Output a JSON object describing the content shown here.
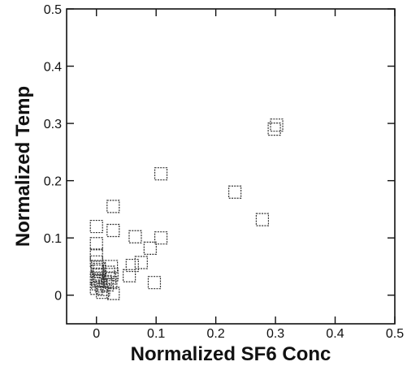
{
  "chart_data": {
    "type": "scatter",
    "title": "",
    "xlabel": "Normalized SF6 Conc",
    "ylabel": "Normalized Temp",
    "xlim": [
      -0.05,
      0.5
    ],
    "ylim": [
      -0.05,
      0.5
    ],
    "xticks": [
      0,
      0.1,
      0.2,
      0.3,
      0.4,
      0.5
    ],
    "xtick_labels": [
      "0",
      "0.1",
      "0.2",
      "0.3",
      "0.4",
      "0.5"
    ],
    "yticks": [
      0,
      0.1,
      0.2,
      0.3,
      0.4,
      0.5
    ],
    "ytick_labels": [
      "0",
      "0.1",
      "0.2",
      "0.3",
      "0.4",
      "0.5"
    ],
    "grid": false,
    "legend": "none",
    "marker": "open-square",
    "marker_color": "#333333",
    "series": [
      {
        "points": [
          [
            0.0,
            0.12
          ],
          [
            0.028,
            0.155
          ],
          [
            0.028,
            0.113
          ],
          [
            0.0,
            0.09
          ],
          [
            0.0,
            0.07
          ],
          [
            0.0,
            0.058
          ],
          [
            0.002,
            0.05
          ],
          [
            0.001,
            0.042
          ],
          [
            0.004,
            0.035
          ],
          [
            0.0,
            0.03
          ],
          [
            0.006,
            0.026
          ],
          [
            0.002,
            0.02
          ],
          [
            0.008,
            0.016
          ],
          [
            0.0,
            0.012
          ],
          [
            0.012,
            0.01
          ],
          [
            0.015,
            0.024
          ],
          [
            0.018,
            0.018
          ],
          [
            0.02,
            0.04
          ],
          [
            0.022,
            0.03
          ],
          [
            0.025,
            0.05
          ],
          [
            0.026,
            0.036
          ],
          [
            0.024,
            0.022
          ],
          [
            0.028,
            0.003
          ],
          [
            0.01,
            0.005
          ],
          [
            0.005,
            0.045
          ],
          [
            0.003,
            0.025
          ],
          [
            0.055,
            0.034
          ],
          [
            0.06,
            0.052
          ],
          [
            0.065,
            0.102
          ],
          [
            0.075,
            0.057
          ],
          [
            0.09,
            0.082
          ],
          [
            0.097,
            0.022
          ],
          [
            0.108,
            0.1
          ],
          [
            0.108,
            0.212
          ],
          [
            0.232,
            0.18
          ],
          [
            0.278,
            0.132
          ],
          [
            0.298,
            0.29
          ],
          [
            0.302,
            0.297
          ]
        ]
      }
    ]
  }
}
